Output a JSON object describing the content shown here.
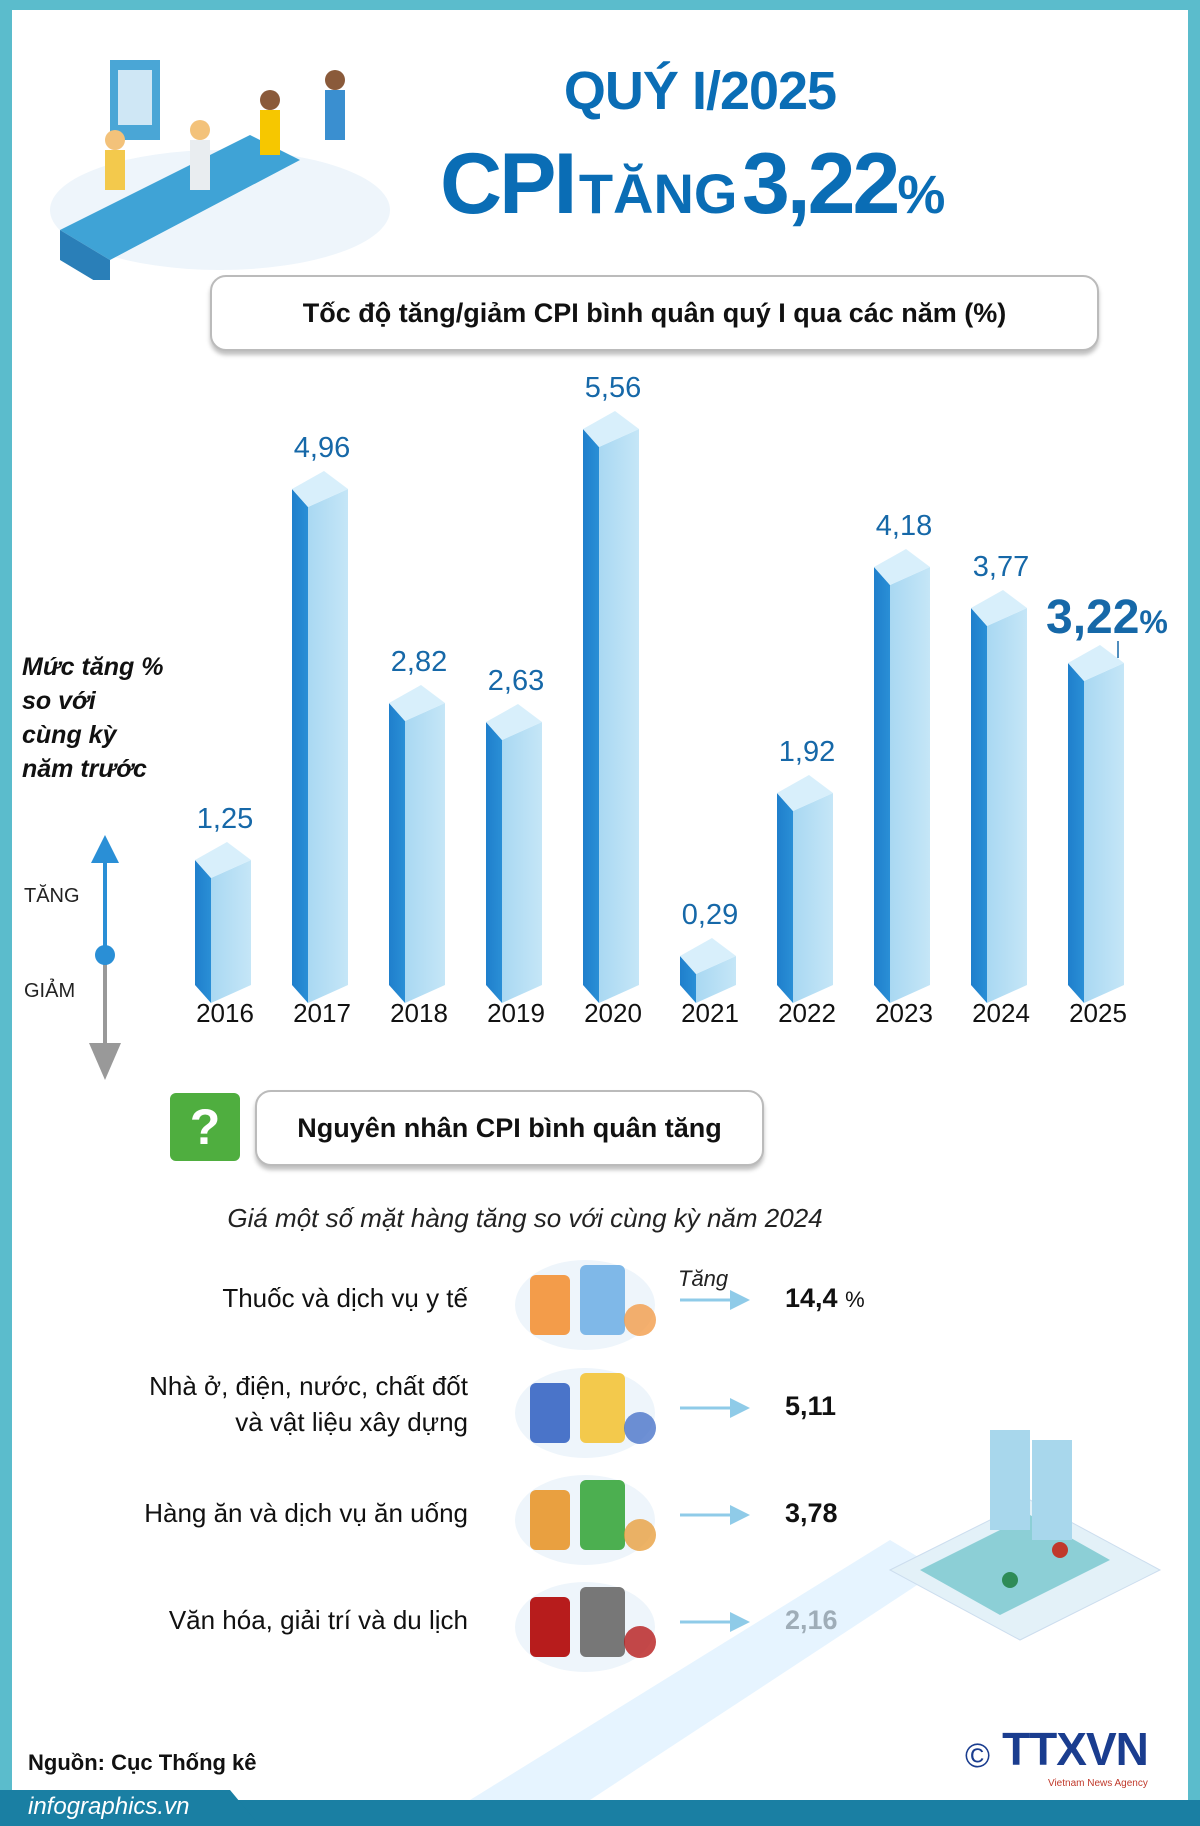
{
  "header": {
    "title_line1": "QUÝ I/2025",
    "title_cpi": "CPI",
    "title_tang": "TĂNG",
    "title_value": "3,22",
    "title_pct": "%"
  },
  "chart_subtitle": "Tốc độ tăng/giảm CPI bình quân quý I qua các năm (%)",
  "axis_note": {
    "line1": "Mức tăng %",
    "line2": "so với",
    "line3": "cùng kỳ",
    "line4": "năm trước",
    "up_label": "TĂNG",
    "down_label": "GIẢM"
  },
  "chart_data": {
    "type": "bar",
    "title": "Tốc độ tăng/giảm CPI bình quân quý I qua các năm (%)",
    "categories": [
      "2016",
      "2017",
      "2018",
      "2019",
      "2020",
      "2021",
      "2022",
      "2023",
      "2024",
      "2025"
    ],
    "values": [
      1.25,
      4.96,
      2.82,
      2.63,
      5.56,
      0.29,
      1.92,
      4.18,
      3.77,
      3.22
    ],
    "labels": [
      "1,25",
      "4,96",
      "2,82",
      "2,63",
      "5,56",
      "0,29",
      "1,92",
      "4,18",
      "3,77",
      "3,22"
    ],
    "highlight_label": "3,22",
    "highlight_suffix": "%",
    "ylim": [
      0,
      6
    ],
    "colors": {
      "front": "#2a8fd6",
      "side": "#a9d8f2",
      "top": "#d8effb",
      "label": "#1668a8"
    }
  },
  "causes": {
    "heading": "Nguyên nhân CPI bình quân tăng",
    "question_icon": "?",
    "subtitle": "Giá một số mặt hàng tăng so với cùng kỳ năm 2024",
    "tang_label": "Tăng",
    "items": [
      {
        "label_line1": "Thuốc và dịch vụ y tế",
        "label_line2": "",
        "value": "14,4",
        "unit": "%",
        "icon": "medicine-icon"
      },
      {
        "label_line1": "Nhà ở, điện, nước, chất đốt",
        "label_line2": "và vật liệu xây dựng",
        "value": "5,11",
        "unit": "",
        "icon": "utilities-icon"
      },
      {
        "label_line1": "Hàng ăn và dịch vụ ăn uống",
        "label_line2": "",
        "value": "3,78",
        "unit": "",
        "icon": "food-icon"
      },
      {
        "label_line1": "Văn hóa, giải trí và du lịch",
        "label_line2": "",
        "value": "2,16",
        "unit": "",
        "icon": "entertainment-icon"
      }
    ]
  },
  "source": "Nguồn: Cục Thống kê",
  "footer": {
    "site": "infographics.vn",
    "logo_text": "TTXVN",
    "logo_sub": "Vietnam News Agency",
    "copyright": "©"
  }
}
